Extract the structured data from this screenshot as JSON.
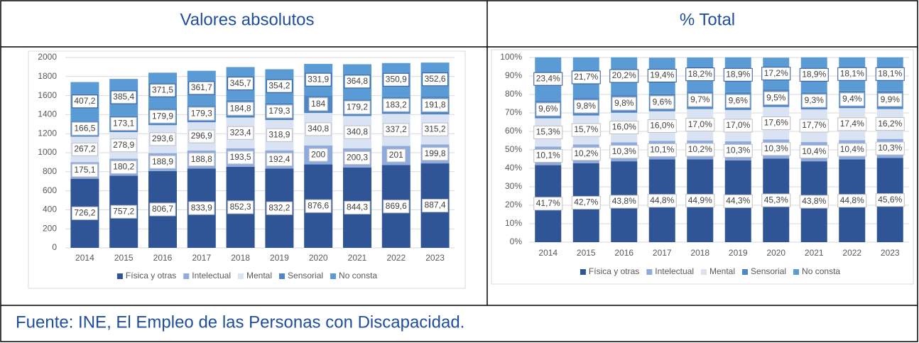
{
  "headers": [
    "Valores absolutos",
    "% Total"
  ],
  "source": "Fuente: INE, El Empleo de las Personas con Discapacidad.",
  "chart_data": [
    {
      "type": "stacked_bar",
      "categories": [
        "2014",
        "2015",
        "2016",
        "2017",
        "2018",
        "2019",
        "2020",
        "2021",
        "2022",
        "2023"
      ],
      "ylim": [
        0,
        2000
      ],
      "yticks": [
        0,
        200,
        400,
        600,
        800,
        1000,
        1200,
        1400,
        1600,
        1800,
        2000
      ],
      "grid": true,
      "legend": "bottom",
      "series": [
        {
          "name": "Física y otras",
          "color": "#2f5597",
          "values": [
            726.2,
            757.2,
            806.7,
            833.9,
            852.3,
            832.2,
            876.6,
            844.3,
            869.6,
            887.4
          ],
          "value_labels": [
            "726,2",
            "757,2",
            "806,7",
            "833,9",
            "852,3",
            "832,2",
            "876,6",
            "844,3",
            "869,6",
            "887,4"
          ]
        },
        {
          "name": "Intelectual",
          "color": "#8faadc",
          "values": [
            175.1,
            180.2,
            188.9,
            188.8,
            193.5,
            192.4,
            200,
            200.3,
            201,
            199.8
          ],
          "value_labels": [
            "175,1",
            "180,2",
            "188,9",
            "188,8",
            "193,5",
            "192,4",
            "200",
            "200,3",
            "201",
            "199,8"
          ]
        },
        {
          "name": "Mental",
          "color": "#dae3f3",
          "values": [
            267.2,
            278.9,
            293.6,
            296.9,
            323.4,
            318.9,
            340.8,
            340.8,
            337.2,
            315.2
          ],
          "value_labels": [
            "267,2",
            "278,9",
            "293,6",
            "296,9",
            "323,4",
            "318,9",
            "340,8",
            "340,8",
            "337,2",
            "315,2"
          ]
        },
        {
          "name": "Sensorial",
          "color": "#4e86c6",
          "values": [
            166.5,
            173.1,
            179.9,
            179.3,
            184.8,
            179.3,
            184,
            179.2,
            183.2,
            191.8
          ],
          "value_labels": [
            "166,5",
            "173,1",
            "179,9",
            "179,3",
            "184,8",
            "179,3",
            "184",
            "179,2",
            "183,2",
            "191,8"
          ]
        },
        {
          "name": "No consta",
          "color": "#5b9bd5",
          "values": [
            407.2,
            385.4,
            371.5,
            361.7,
            345.7,
            354.2,
            331.9,
            364.8,
            350.9,
            352.6
          ],
          "value_labels": [
            "407,2",
            "385,4",
            "371,5",
            "361,7",
            "345,7",
            "354,2",
            "331,9",
            "364,8",
            "350,9",
            "352,6"
          ]
        }
      ]
    },
    {
      "type": "stacked_bar",
      "categories": [
        "2014",
        "2015",
        "2016",
        "2017",
        "2018",
        "2019",
        "2020",
        "2021",
        "2022",
        "2023"
      ],
      "ylim": [
        0,
        100
      ],
      "yticks": [
        {
          "value": 0,
          "label": "0%"
        },
        {
          "value": 10,
          "label": "10%"
        },
        {
          "value": 20,
          "label": "20%"
        },
        {
          "value": 30,
          "label": "30%"
        },
        {
          "value": 40,
          "label": "40%"
        },
        {
          "value": 50,
          "label": "50%"
        },
        {
          "value": 60,
          "label": "60%"
        },
        {
          "value": 70,
          "label": "70%"
        },
        {
          "value": 80,
          "label": "80%"
        },
        {
          "value": 90,
          "label": "90%"
        },
        {
          "value": 100,
          "label": "100%"
        }
      ],
      "grid": true,
      "legend": "bottom",
      "series": [
        {
          "name": "Física y otras",
          "color": "#2f5597",
          "values": [
            41.7,
            42.7,
            43.8,
            44.8,
            44.9,
            44.3,
            45.3,
            43.8,
            44.8,
            45.6
          ],
          "value_labels": [
            "41,7%",
            "42,7%",
            "43,8%",
            "44,8%",
            "44,9%",
            "44,3%",
            "45,3%",
            "43,8%",
            "44,8%",
            "45,6%"
          ]
        },
        {
          "name": "Intelectual",
          "color": "#8faadc",
          "values": [
            10.1,
            10.2,
            10.3,
            10.1,
            10.2,
            10.3,
            10.3,
            10.4,
            10.4,
            10.3
          ],
          "value_labels": [
            "10,1%",
            "10,2%",
            "10,3%",
            "10,1%",
            "10,2%",
            "10,3%",
            "10,3%",
            "10,4%",
            "10,4%",
            "10,3%"
          ]
        },
        {
          "name": "Mental",
          "color": "#dae3f3",
          "values": [
            15.3,
            15.7,
            16.0,
            16.0,
            17.0,
            17.0,
            17.6,
            17.7,
            17.4,
            16.2
          ],
          "value_labels": [
            "15,3%",
            "15,7%",
            "16,0%",
            "16,0%",
            "17,0%",
            "17,0%",
            "17,6%",
            "17,7%",
            "17,4%",
            "16,2%"
          ]
        },
        {
          "name": "Sensorial",
          "color": "#4e86c6",
          "values": [
            9.6,
            9.8,
            9.8,
            9.6,
            9.7,
            9.6,
            9.5,
            9.3,
            9.4,
            9.9
          ],
          "value_labels": [
            "9,6%",
            "9,8%",
            "9,8%",
            "9,6%",
            "9,7%",
            "9,6%",
            "9,5%",
            "9,3%",
            "9,4%",
            "9,9%"
          ]
        },
        {
          "name": "No consta",
          "color": "#5b9bd5",
          "values": [
            23.4,
            21.7,
            20.2,
            19.4,
            18.2,
            18.9,
            17.2,
            18.9,
            18.1,
            18.1
          ],
          "value_labels": [
            "23,4%",
            "21,7%",
            "20,2%",
            "19,4%",
            "18,2%",
            "18,9%",
            "17,2%",
            "18,9%",
            "18,1%",
            "18,1%"
          ]
        }
      ]
    }
  ]
}
